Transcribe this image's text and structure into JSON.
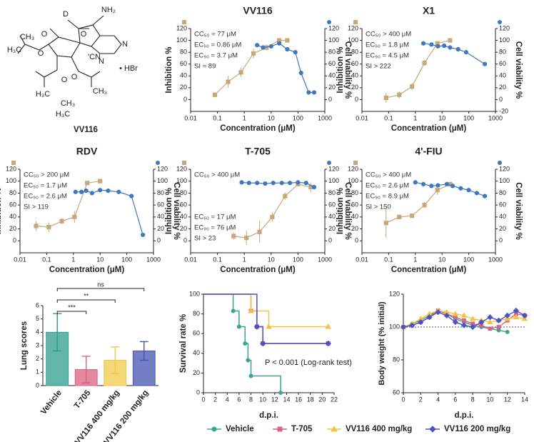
{
  "structure": {
    "compound": "VV116",
    "atoms": [
      "D",
      "NH₂",
      "N",
      "N",
      "O",
      "O",
      "O",
      "O",
      "O",
      "O",
      "O",
      "'CN",
      "• HBr",
      "H₃C",
      "CH₃",
      "H₃C",
      "CH₃",
      "H₃C",
      "CH₃"
    ]
  },
  "chart_data": [
    {
      "type": "dose_response",
      "title": "VV116",
      "xlabel": "Concentration (μM)",
      "ylabel": "Inhibition %",
      "y2label": "Cell viability %",
      "xscale": "log",
      "xlim": [
        0.01,
        1000
      ],
      "xticks": [
        0.01,
        0.1,
        1,
        10,
        100,
        1000
      ],
      "ylim": [
        -20,
        120
      ],
      "yticks": [
        0,
        20,
        40,
        60,
        80,
        100,
        120
      ],
      "y2lim": [
        -20,
        120
      ],
      "y2ticks": [
        0,
        20,
        40,
        60,
        80,
        100,
        120
      ],
      "annotations": [
        "CC₅₀ = 77 μM",
        "EC₅₀ = 0.86 μM",
        "EC₉₀ = 3.7 μM",
        "SI = 89"
      ],
      "series": [
        {
          "color": "#c9a77c",
          "marker": "square",
          "x": [
            0.08,
            0.25,
            0.75,
            2.2,
            6.7,
            20,
            40
          ],
          "values": [
            8,
            30,
            46,
            78,
            88,
            100,
            100
          ],
          "errors": [
            3,
            10,
            8,
            8,
            5,
            3,
            3
          ]
        },
        {
          "axis": "y2",
          "color": "#3f78c0",
          "marker": "circle",
          "x": [
            3,
            5,
            10,
            20,
            40,
            80,
            130,
            250,
            400
          ],
          "values": [
            92,
            88,
            90,
            95,
            85,
            80,
            45,
            12,
            12
          ]
        }
      ]
    },
    {
      "type": "dose_response",
      "title": "X1",
      "xlabel": "Concentration (μM)",
      "ylabel": "Inhibition %",
      "y2label": "Cell viability %",
      "xscale": "log",
      "xlim": [
        0.01,
        1000
      ],
      "xticks": [
        0.01,
        0.1,
        1,
        10,
        100,
        1000
      ],
      "ylim": [
        -20,
        120
      ],
      "yticks": [
        0,
        20,
        40,
        60,
        80,
        100,
        120
      ],
      "y2lim": [
        -20,
        120
      ],
      "y2ticks": [
        -20,
        0,
        20,
        40,
        60,
        80,
        100,
        120
      ],
      "annotations": [
        "CC₅₀ > 400 μM",
        "EC₅₀ = 1.8 μM",
        "EC₉₀ = 4.5 μM",
        "SI > 222"
      ],
      "series": [
        {
          "color": "#c9a77c",
          "marker": "square",
          "x": [
            0.08,
            0.25,
            0.75,
            2.2,
            6.7,
            20
          ],
          "values": [
            3,
            8,
            22,
            62,
            95,
            100
          ],
          "errors": [
            8,
            6,
            6,
            5,
            3,
            2
          ]
        },
        {
          "axis": "y2",
          "color": "#3f78c0",
          "marker": "circle",
          "x": [
            2,
            4,
            7,
            12,
            20,
            40,
            80,
            400
          ],
          "values": [
            95,
            93,
            90,
            91,
            88,
            85,
            80,
            60
          ]
        }
      ]
    },
    {
      "type": "dose_response",
      "title": "RDV",
      "xlabel": "Concentration (μM)",
      "ylabel": "Inhibition %",
      "y2label": "Cell viability %",
      "xscale": "log",
      "xlim": [
        0.01,
        1000
      ],
      "xticks": [
        0.01,
        0.1,
        1,
        10,
        100,
        1000
      ],
      "ylim": [
        -20,
        120
      ],
      "yticks": [
        0,
        20,
        40,
        60,
        80,
        100,
        120
      ],
      "y2lim": [
        -20,
        120
      ],
      "y2ticks": [
        0,
        20,
        40,
        60,
        80,
        100,
        120
      ],
      "annotations": [
        "CC₅₀ > 200 μM",
        "EC₅₀ = 1.7 μM",
        "EC₉₀ = 2.6 μM",
        "SI > 119"
      ],
      "series": [
        {
          "color": "#c9a77c",
          "marker": "square",
          "x": [
            0.04,
            0.12,
            0.37,
            1.1,
            3.3,
            10
          ],
          "values": [
            25,
            23,
            33,
            40,
            97,
            100
          ],
          "errors": [
            8,
            8,
            5,
            10,
            3,
            3
          ]
        },
        {
          "axis": "y2",
          "color": "#3f78c0",
          "marker": "circle",
          "x": [
            1.2,
            2,
            3,
            5,
            10,
            20,
            50,
            150,
            400
          ],
          "values": [
            82,
            82,
            84,
            80,
            85,
            84,
            82,
            75,
            10
          ]
        }
      ]
    },
    {
      "type": "dose_response",
      "title": "T-705",
      "xlabel": "Concentration (μM)",
      "ylabel": "Inhibition %",
      "y2label": "Cell viability %",
      "xscale": "log",
      "xlim": [
        0.01,
        1000
      ],
      "xticks": [
        0.01,
        0.1,
        1,
        10,
        100,
        1000
      ],
      "ylim": [
        -20,
        120
      ],
      "yticks": [
        0,
        20,
        40,
        60,
        80,
        100,
        120
      ],
      "y2lim": [
        -20,
        120
      ],
      "y2ticks": [
        0,
        20,
        40,
        60,
        80,
        100,
        120
      ],
      "annotations": [
        "CC₅₀ > 400 μM",
        "EC₅₀ = 17 μM",
        "EC₉₀ = 76 μM",
        "SI > 23"
      ],
      "series": [
        {
          "color": "#c9a77c",
          "marker": "square",
          "x": [
            0.4,
            1.2,
            3.7,
            11,
            33,
            100,
            300
          ],
          "values": [
            8,
            5,
            15,
            40,
            75,
            95,
            90
          ],
          "errors": [
            6,
            12,
            18,
            8,
            6,
            4,
            8
          ]
        },
        {
          "axis": "y2",
          "color": "#3f78c0",
          "marker": "circle",
          "x": [
            0.8,
            1.5,
            3,
            6,
            12,
            25,
            50,
            100,
            200,
            400
          ],
          "values": [
            98,
            97,
            97,
            96,
            97,
            97,
            97,
            98,
            97,
            90
          ]
        }
      ]
    },
    {
      "type": "dose_response",
      "title": "4'-FIU",
      "xlabel": "Concentration (μM)",
      "ylabel": "Inhibition %",
      "y2label": "Cell viability %",
      "xscale": "log",
      "xlim": [
        0.01,
        1000
      ],
      "xticks": [
        0.01,
        0.1,
        1,
        10,
        100,
        1000
      ],
      "ylim": [
        -20,
        120
      ],
      "yticks": [
        0,
        20,
        40,
        60,
        80,
        100,
        120
      ],
      "y2lim": [
        -20,
        120
      ],
      "y2ticks": [
        0,
        20,
        40,
        60,
        80,
        100,
        120
      ],
      "annotations": [
        "CC₅₀ > 400 μM",
        "EC₅₀ = 2.6 μM",
        "EC₉₀ = 8.9 μM",
        "SI > 150"
      ],
      "series": [
        {
          "color": "#c9a77c",
          "marker": "square",
          "x": [
            0.08,
            0.25,
            0.75,
            2.2,
            6.7,
            20
          ],
          "values": [
            30,
            40,
            42,
            60,
            85,
            95
          ],
          "errors": [
            25,
            3,
            3,
            5,
            8,
            4
          ]
        },
        {
          "axis": "y2",
          "color": "#3f78c0",
          "marker": "circle",
          "x": [
            1,
            2,
            4,
            7,
            15,
            25,
            50,
            100,
            200,
            400
          ],
          "values": [
            98,
            95,
            92,
            93,
            95,
            92,
            88,
            85,
            80,
            75
          ]
        }
      ]
    },
    {
      "type": "bar",
      "ylabel": "Lung scores",
      "categories": [
        "Vehicle",
        "T-705",
        "VV116 400 mg/kg",
        "VV116 200 mg/kg"
      ],
      "values": [
        4.0,
        1.2,
        1.9,
        2.6
      ],
      "errors": [
        1.4,
        1.0,
        1.0,
        0.7
      ],
      "colors": [
        "#2e9c8a",
        "#d9607e",
        "#f0c948",
        "#4453b0"
      ],
      "ylim": [
        0,
        6
      ],
      "yticks": [
        0,
        1,
        2,
        3,
        4,
        5,
        6
      ],
      "significance": [
        "***",
        "**",
        "ns"
      ]
    },
    {
      "type": "step",
      "xlabel": "d.p.i.",
      "ylabel": "Survival rate %",
      "xlim": [
        0,
        22
      ],
      "xticks": [
        0,
        2,
        4,
        6,
        8,
        10,
        12,
        14,
        16,
        18,
        20,
        22
      ],
      "ylim": [
        0,
        100
      ],
      "yticks": [
        0,
        20,
        40,
        60,
        80,
        100
      ],
      "annotation": "P < 0.001 (Log-rank test)",
      "series": [
        {
          "name": "Vehicle",
          "color": "#3aa58f",
          "marker": "circle",
          "x": [
            0,
            5,
            6,
            7,
            7.5,
            8,
            13
          ],
          "values": [
            100,
            83,
            67,
            50,
            33,
            17,
            0
          ]
        },
        {
          "name": "T-705",
          "color": "#d9628a",
          "marker": "square",
          "x": [
            0,
            8,
            9,
            10,
            21
          ],
          "values": [
            100,
            83,
            67,
            50,
            50
          ]
        },
        {
          "name": "VV116 400 mg/kg",
          "color": "#efc440",
          "marker": "triangle",
          "x": [
            0,
            8,
            11,
            21
          ],
          "values": [
            100,
            83,
            67,
            67
          ]
        },
        {
          "name": "VV116 200 mg/kg",
          "color": "#4b52c4",
          "marker": "diamond",
          "x": [
            0,
            9,
            10,
            21
          ],
          "values": [
            100,
            67,
            50,
            50
          ]
        }
      ]
    },
    {
      "type": "line",
      "xlabel": "d.p.i.",
      "ylabel": "Body weight (% initial)",
      "xlim": [
        0,
        14
      ],
      "xticks": [
        0,
        2,
        4,
        6,
        8,
        10,
        12,
        14
      ],
      "ylim": [
        60,
        120
      ],
      "yticks": [
        60,
        80,
        100,
        120
      ],
      "reference_line": 100,
      "x": [
        0,
        1,
        2,
        3,
        4,
        5,
        6,
        7,
        8,
        9,
        10,
        11,
        12,
        13,
        14
      ],
      "series": [
        {
          "color": "#3aa58f",
          "marker": "circle",
          "values": [
            100,
            102,
            104,
            107,
            110,
            108,
            105,
            103,
            101,
            100,
            99,
            98,
            97,
            null,
            null
          ]
        },
        {
          "color": "#d9628a",
          "marker": "square",
          "values": [
            100,
            101,
            103,
            106,
            110,
            108,
            106,
            104,
            102,
            101,
            99,
            100,
            104,
            108,
            107
          ]
        },
        {
          "color": "#efc440",
          "marker": "triangle",
          "values": [
            100,
            102,
            105,
            108,
            110,
            109,
            108,
            107,
            105,
            104,
            103,
            104,
            105,
            106,
            105
          ]
        },
        {
          "color": "#4b52c4",
          "marker": "diamond",
          "values": [
            100,
            101,
            103,
            106,
            109,
            107,
            103,
            101,
            100,
            103,
            106,
            104,
            107,
            110,
            107
          ]
        }
      ]
    }
  ]
}
